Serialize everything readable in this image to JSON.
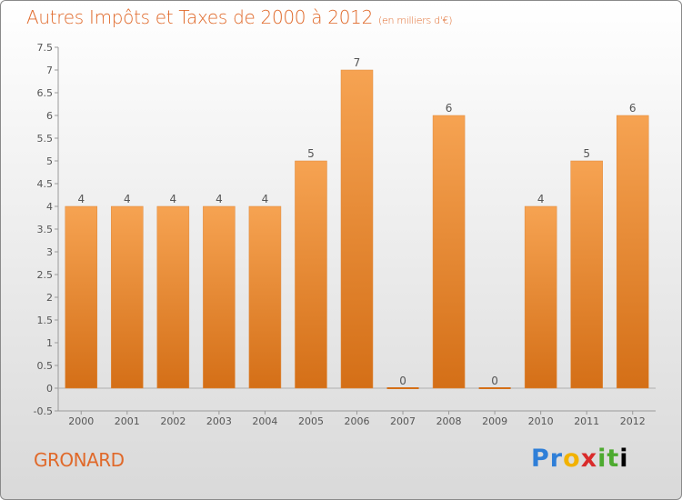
{
  "header": {
    "title": "Autres Impôts et Taxes de 2000 à 2012",
    "subtitle": "(en milliers d'€)"
  },
  "footer": {
    "town": "GRONARD",
    "logo": "Proxiti"
  },
  "colors": {
    "accent": "#e0692a",
    "bar_top": "#f6a352",
    "bar_bottom": "#d46f17"
  },
  "chart_data": {
    "type": "bar",
    "categories": [
      "2000",
      "2001",
      "2002",
      "2003",
      "2004",
      "2005",
      "2006",
      "2007",
      "2008",
      "2009",
      "2010",
      "2011",
      "2012"
    ],
    "values": [
      4,
      4,
      4,
      4,
      4,
      5,
      7,
      0,
      6,
      0,
      4,
      5,
      6
    ],
    "data_labels": [
      "4",
      "4",
      "4",
      "4",
      "4",
      "5",
      "7",
      "0",
      "6",
      "0",
      "4",
      "5",
      "6"
    ],
    "yticks": [
      "-0.5",
      "0",
      "0.5",
      "1",
      "1.5",
      "2",
      "2.5",
      "3",
      "3.5",
      "4",
      "4.5",
      "5",
      "5.5",
      "6",
      "6.5",
      "7",
      "7.5"
    ],
    "ylim": [
      -0.5,
      7.5
    ],
    "grid": false
  }
}
